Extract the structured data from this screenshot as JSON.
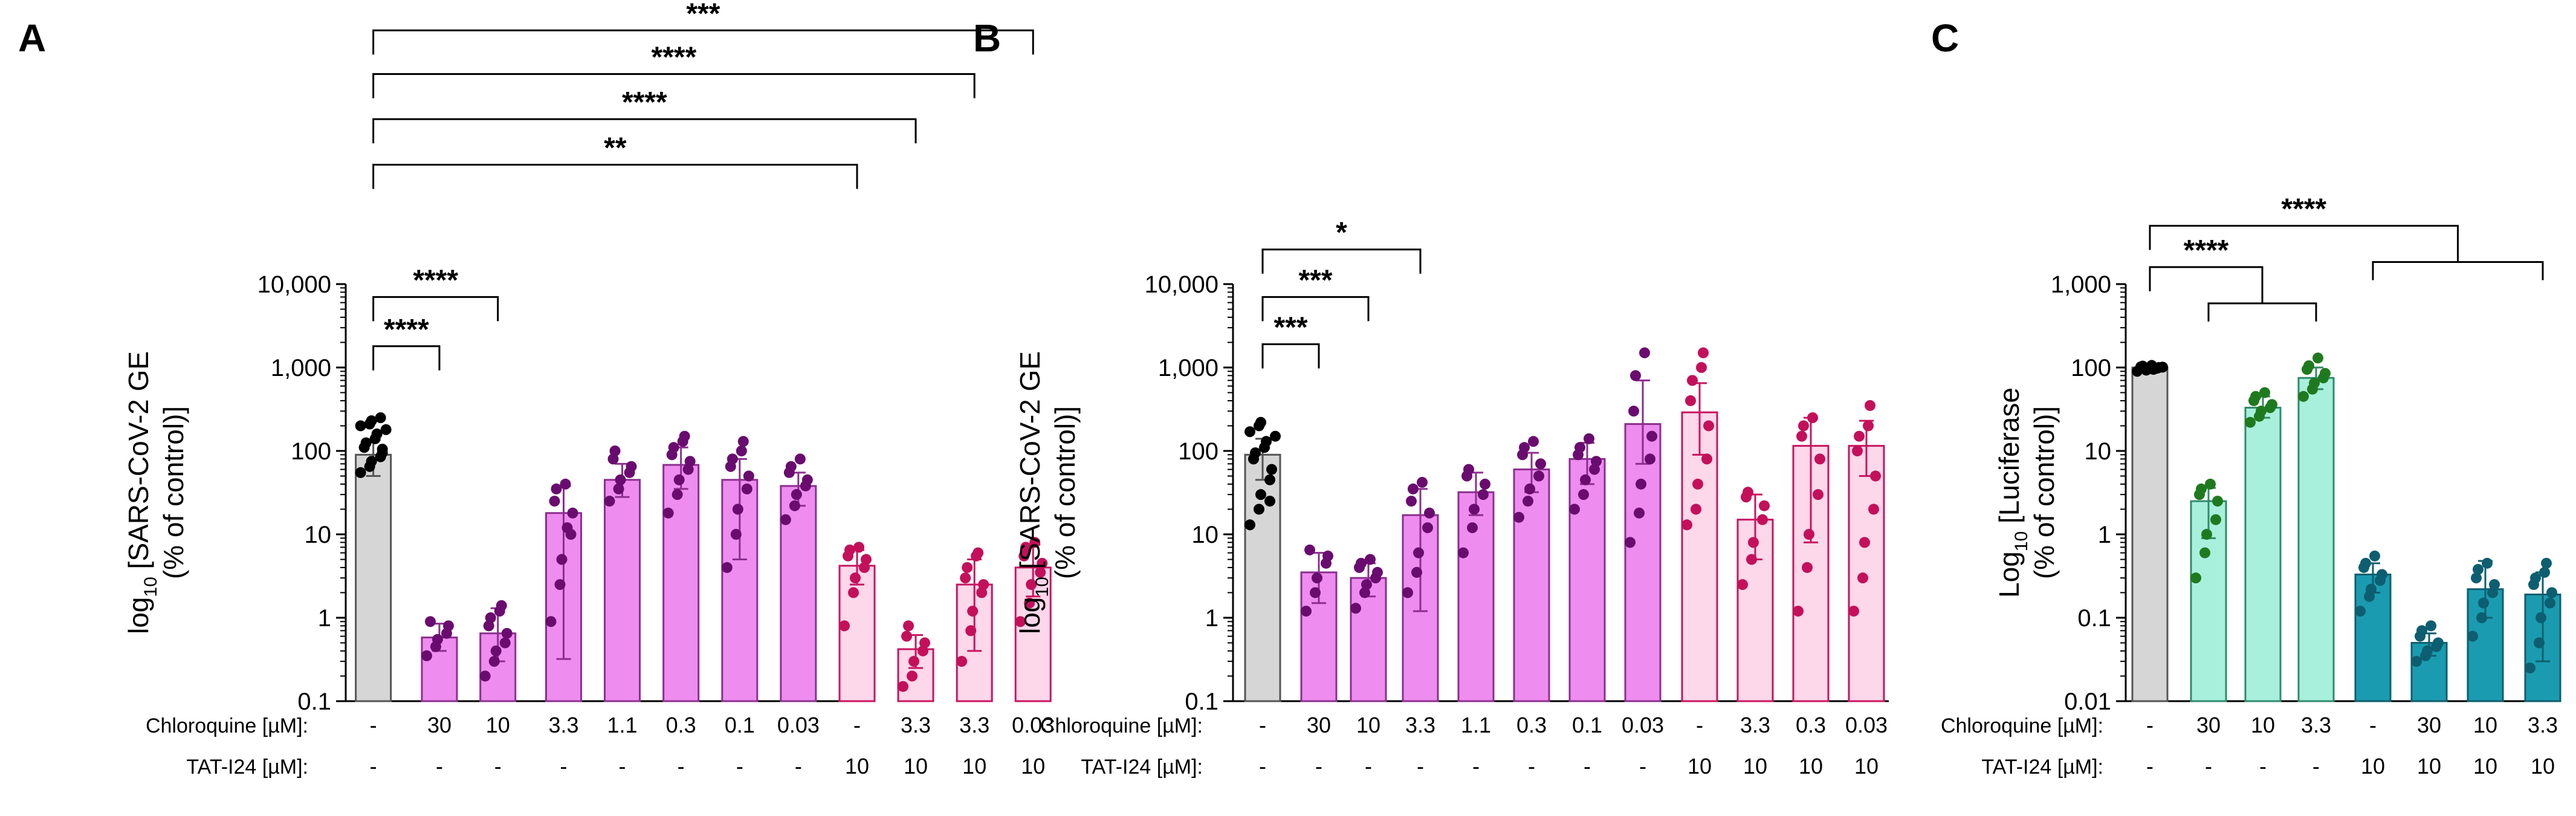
{
  "chart_data": [
    {
      "panel": "A",
      "type": "bar",
      "yscale": "log",
      "ylim": [
        0.1,
        10000
      ],
      "yticks": [
        "0.1",
        "1",
        "10",
        "100",
        "1,000",
        "10,000"
      ],
      "ylabel_pre": "log",
      "ylabel_sub": "10",
      "ylabel_post": " [SARS-CoV-2 GE",
      "ylabel_line2": "(% of control)]",
      "row_labels": [
        "Chloroquine [µM]:",
        "TAT-I24 [µM]:"
      ],
      "groups": [
        {
          "chloroquine": "-",
          "tat": "-",
          "mean": 90,
          "lo": 50,
          "hi": 135,
          "fill": "#d6d6d6",
          "edge": "#555555",
          "dot": "#000000",
          "points": [
            55,
            65,
            75,
            85,
            95,
            110,
            125,
            140,
            160,
            180,
            200,
            210,
            230,
            250,
            105
          ]
        },
        {
          "chloroquine": "30",
          "tat": "-",
          "mean": 0.58,
          "lo": 0.4,
          "hi": 0.85,
          "fill": "#ee8cf0",
          "edge": "#8b2f8e",
          "dot": "#6a0c6f",
          "points": [
            0.35,
            0.45,
            0.55,
            0.65,
            0.8,
            0.9
          ]
        },
        {
          "chloroquine": "10",
          "tat": "-",
          "mean": 0.65,
          "lo": 0.3,
          "hi": 1.3,
          "fill": "#ee8cf0",
          "edge": "#8b2f8e",
          "dot": "#6a0c6f",
          "points": [
            0.2,
            0.3,
            0.4,
            0.5,
            0.65,
            0.8,
            1.0,
            1.2,
            1.4
          ]
        },
        {
          "chloroquine": "3.3",
          "tat": "-",
          "mean": 18,
          "lo": 0.32,
          "hi": 38,
          "fill": "#ee8cf0",
          "edge": "#8b2f8e",
          "dot": "#6a0c6f",
          "points": [
            0.9,
            2.5,
            5,
            10,
            18,
            25,
            35,
            40,
            12
          ]
        },
        {
          "chloroquine": "1.1",
          "tat": "-",
          "mean": 45,
          "lo": 28,
          "hi": 70,
          "fill": "#ee8cf0",
          "edge": "#8b2f8e",
          "dot": "#6a0c6f",
          "points": [
            25,
            35,
            45,
            55,
            65,
            80,
            100
          ]
        },
        {
          "chloroquine": "0.3",
          "tat": "-",
          "mean": 68,
          "lo": 35,
          "hi": 110,
          "fill": "#ee8cf0",
          "edge": "#8b2f8e",
          "dot": "#6a0c6f",
          "points": [
            18,
            30,
            45,
            60,
            75,
            90,
            110,
            130,
            150
          ]
        },
        {
          "chloroquine": "0.1",
          "tat": "-",
          "mean": 45,
          "lo": 5,
          "hi": 80,
          "fill": "#ee8cf0",
          "edge": "#8b2f8e",
          "dot": "#6a0c6f",
          "points": [
            4,
            10,
            20,
            35,
            50,
            65,
            80,
            100,
            130
          ]
        },
        {
          "chloroquine": "0.03",
          "tat": "-",
          "mean": 38,
          "lo": 22,
          "hi": 55,
          "fill": "#ee8cf0",
          "edge": "#8b2f8e",
          "dot": "#6a0c6f",
          "points": [
            15,
            22,
            30,
            38,
            45,
            55,
            65,
            80
          ]
        },
        {
          "chloroquine": "-",
          "tat": "10",
          "mean": 4.2,
          "lo": 2.5,
          "hi": 6.5,
          "fill": "#fdd7ea",
          "edge": "#c8155f",
          "dot": "#c4105a",
          "points": [
            0.8,
            2,
            3,
            4,
            5,
            5.5,
            6.5,
            7
          ]
        },
        {
          "chloroquine": "3.3",
          "tat": "10",
          "mean": 0.42,
          "lo": 0.25,
          "hi": 0.62,
          "fill": "#fdd7ea",
          "edge": "#c8155f",
          "dot": "#c4105a",
          "points": [
            0.15,
            0.2,
            0.3,
            0.4,
            0.5,
            0.6,
            0.8
          ]
        },
        {
          "chloroquine": "3.3",
          "tat": "10",
          "mean": 2.5,
          "lo": 0.4,
          "hi": 5,
          "fill": "#fdd7ea",
          "edge": "#c8155f",
          "dot": "#c4105a",
          "points": [
            0.3,
            0.7,
            1.2,
            2,
            2.5,
            3,
            4,
            5.5,
            6
          ]
        },
        {
          "chloroquine": "0.03",
          "tat": "10",
          "mean": 4,
          "lo": 1.8,
          "hi": 7.5,
          "fill": "#fdd7ea",
          "edge": "#c8155f",
          "dot": "#c4105a",
          "points": [
            0.9,
            1.5,
            2.5,
            3.5,
            4.5,
            5.5,
            7,
            8
          ]
        }
      ],
      "brackets": [
        {
          "from": 0,
          "to": 1,
          "label": "****",
          "y": 1800
        },
        {
          "from": 0,
          "to": 2,
          "label": "****",
          "y": 7000
        },
        {
          "from": 0,
          "to": 8,
          "label": "**",
          "y": 270000
        },
        {
          "from": 0,
          "to": 9,
          "label": "****",
          "y": 950000
        },
        {
          "from": 0,
          "to": 10,
          "label": "****",
          "y": 3300000
        },
        {
          "from": 0,
          "to": 11,
          "label": "***",
          "y": 11000000
        }
      ]
    },
    {
      "panel": "B",
      "type": "bar",
      "yscale": "log",
      "ylim": [
        0.1,
        10000
      ],
      "yticks": [
        "0.1",
        "1",
        "10",
        "100",
        "1,000",
        "10,000"
      ],
      "ylabel_pre": "log",
      "ylabel_sub": "10",
      "ylabel_post": " [SARS-CoV-2 GE",
      "ylabel_line2": "(% of control)]",
      "row_labels": [
        "Chloroquine [µM]:",
        "TAT-I24 [µM]:"
      ],
      "groups": [
        {
          "chloroquine": "-",
          "tat": "-",
          "mean": 90,
          "lo": 45,
          "hi": 140,
          "fill": "#d6d6d6",
          "edge": "#555555",
          "dot": "#000000",
          "points": [
            13,
            20,
            30,
            45,
            60,
            80,
            95,
            110,
            130,
            150,
            170,
            200,
            220,
            25
          ]
        },
        {
          "chloroquine": "30",
          "tat": "-",
          "mean": 3.5,
          "lo": 1.5,
          "hi": 6,
          "fill": "#ee8cf0",
          "edge": "#8b2f8e",
          "dot": "#6a0c6f",
          "points": [
            1.2,
            2,
            3,
            4.5,
            5.5,
            6.5
          ]
        },
        {
          "chloroquine": "10",
          "tat": "-",
          "mean": 3,
          "lo": 1.8,
          "hi": 4.5,
          "fill": "#ee8cf0",
          "edge": "#8b2f8e",
          "dot": "#6a0c6f",
          "points": [
            1.3,
            2,
            2.5,
            3,
            3.5,
            4,
            4.5,
            5
          ]
        },
        {
          "chloroquine": "3.3",
          "tat": "-",
          "mean": 17,
          "lo": 1.2,
          "hi": 35,
          "fill": "#ee8cf0",
          "edge": "#8b2f8e",
          "dot": "#6a0c6f",
          "points": [
            2,
            3.5,
            6,
            12,
            18,
            25,
            35,
            42
          ]
        },
        {
          "chloroquine": "1.1",
          "tat": "-",
          "mean": 32,
          "lo": 17,
          "hi": 55,
          "fill": "#ee8cf0",
          "edge": "#8b2f8e",
          "dot": "#6a0c6f",
          "points": [
            6,
            12,
            20,
            30,
            40,
            50,
            60
          ]
        },
        {
          "chloroquine": "0.3",
          "tat": "-",
          "mean": 60,
          "lo": 32,
          "hi": 95,
          "fill": "#ee8cf0",
          "edge": "#8b2f8e",
          "dot": "#6a0c6f",
          "points": [
            16,
            25,
            35,
            50,
            70,
            90,
            110,
            130
          ]
        },
        {
          "chloroquine": "0.1",
          "tat": "-",
          "mean": 80,
          "lo": 40,
          "hi": 125,
          "fill": "#ee8cf0",
          "edge": "#8b2f8e",
          "dot": "#6a0c6f",
          "points": [
            20,
            30,
            45,
            60,
            75,
            90,
            110,
            140
          ]
        },
        {
          "chloroquine": "0.03",
          "tat": "-",
          "mean": 210,
          "lo": 70,
          "hi": 700,
          "fill": "#ee8cf0",
          "edge": "#8b2f8e",
          "dot": "#6a0c6f",
          "points": [
            8,
            18,
            40,
            80,
            150,
            300,
            800,
            1500
          ]
        },
        {
          "chloroquine": "-",
          "tat": "10",
          "mean": 290,
          "lo": 90,
          "hi": 650,
          "fill": "#fdd7ea",
          "edge": "#c8155f",
          "dot": "#c4105a",
          "points": [
            13,
            20,
            40,
            80,
            200,
            400,
            700,
            1000,
            1500
          ]
        },
        {
          "chloroquine": "3.3",
          "tat": "10",
          "mean": 15,
          "lo": 5,
          "hi": 30,
          "fill": "#fdd7ea",
          "edge": "#c8155f",
          "dot": "#c4105a",
          "points": [
            2.5,
            5,
            8,
            15,
            22,
            28,
            32
          ]
        },
        {
          "chloroquine": "0.3",
          "tat": "10",
          "mean": 115,
          "lo": 8,
          "hi": 250,
          "fill": "#fdd7ea",
          "edge": "#c8155f",
          "dot": "#c4105a",
          "points": [
            1.2,
            4,
            10,
            30,
            80,
            150,
            200,
            250
          ]
        },
        {
          "chloroquine": "0.03",
          "tat": "10",
          "mean": 115,
          "lo": 50,
          "hi": 230,
          "fill": "#fdd7ea",
          "edge": "#c8155f",
          "dot": "#c4105a",
          "points": [
            1.2,
            3,
            8,
            20,
            50,
            100,
            150,
            200,
            350
          ]
        }
      ],
      "brackets": [
        {
          "from": 0,
          "to": 1,
          "label": "***",
          "y": 1900
        },
        {
          "from": 0,
          "to": 2,
          "label": "***",
          "y": 7000
        },
        {
          "from": 0,
          "to": 3,
          "label": "*",
          "y": 26000
        }
      ]
    },
    {
      "panel": "C",
      "type": "bar",
      "yscale": "log",
      "ylim": [
        0.01,
        1000
      ],
      "yticks": [
        "0.01",
        "0.1",
        "1",
        "10",
        "100",
        "1,000"
      ],
      "ylabel_pre": "Log",
      "ylabel_sub": "10",
      "ylabel_post": " [Luciferase",
      "ylabel_line2": "(% of control)]",
      "row_labels": [
        "Chloroquine [µM]:",
        "TAT-I24 [µM]:"
      ],
      "groups": [
        {
          "chloroquine": "-",
          "tat": "-",
          "mean": 100,
          "lo": 92,
          "hi": 108,
          "fill": "#d6d6d6",
          "edge": "#555555",
          "dot": "#000000",
          "points": [
            90,
            93,
            96,
            98,
            100,
            102,
            104,
            106,
            95,
            101
          ]
        },
        {
          "chloroquine": "30",
          "tat": "-",
          "mean": 2.5,
          "lo": 0.9,
          "hi": 3.6,
          "fill": "#a8f0dc",
          "edge": "#2e8b6b",
          "dot": "#1f7a1f",
          "points": [
            0.3,
            0.6,
            1,
            1.5,
            2.5,
            3,
            3.5,
            4
          ]
        },
        {
          "chloroquine": "10",
          "tat": "-",
          "mean": 33,
          "lo": 25,
          "hi": 45,
          "fill": "#a8f0dc",
          "edge": "#2e8b6b",
          "dot": "#1f7a1f",
          "points": [
            22,
            26,
            30,
            33,
            36,
            40,
            45,
            50
          ]
        },
        {
          "chloroquine": "3.3",
          "tat": "-",
          "mean": 75,
          "lo": 55,
          "hi": 100,
          "fill": "#a8f0dc",
          "edge": "#2e8b6b",
          "dot": "#1f7a1f",
          "points": [
            45,
            55,
            65,
            75,
            85,
            95,
            105,
            130
          ]
        },
        {
          "chloroquine": "-",
          "tat": "10",
          "mean": 0.33,
          "lo": 0.2,
          "hi": 0.45,
          "fill": "#1a9bb0",
          "edge": "#0e5f6e",
          "dot": "#0d5e70",
          "points": [
            0.12,
            0.18,
            0.22,
            0.28,
            0.33,
            0.4,
            0.45,
            0.55
          ]
        },
        {
          "chloroquine": "30",
          "tat": "10",
          "mean": 0.05,
          "lo": 0.035,
          "hi": 0.065,
          "fill": "#1a9bb0",
          "edge": "#0e5f6e",
          "dot": "#0d5e70",
          "points": [
            0.03,
            0.035,
            0.04,
            0.045,
            0.05,
            0.06,
            0.07,
            0.08
          ]
        },
        {
          "chloroquine": "10",
          "tat": "10",
          "mean": 0.22,
          "lo": 0.1,
          "hi": 0.48,
          "fill": "#1a9bb0",
          "edge": "#0e5f6e",
          "dot": "#0d5e70",
          "points": [
            0.06,
            0.1,
            0.15,
            0.2,
            0.25,
            0.3,
            0.38,
            0.45
          ]
        },
        {
          "chloroquine": "3.3",
          "tat": "10",
          "mean": 0.19,
          "lo": 0.03,
          "hi": 0.35,
          "fill": "#1a9bb0",
          "edge": "#0e5f6e",
          "dot": "#0d5e70",
          "points": [
            0.025,
            0.05,
            0.1,
            0.15,
            0.2,
            0.25,
            0.3,
            0.35,
            0.45
          ]
        }
      ],
      "brackets": [
        {
          "type": "fork",
          "from": 0,
          "to_group": [
            1,
            3
          ],
          "label": "****",
          "y": 1600
        },
        {
          "type": "fork",
          "from": 0,
          "to_group": [
            4,
            7
          ],
          "label": "****",
          "y": 5000
        }
      ]
    }
  ]
}
